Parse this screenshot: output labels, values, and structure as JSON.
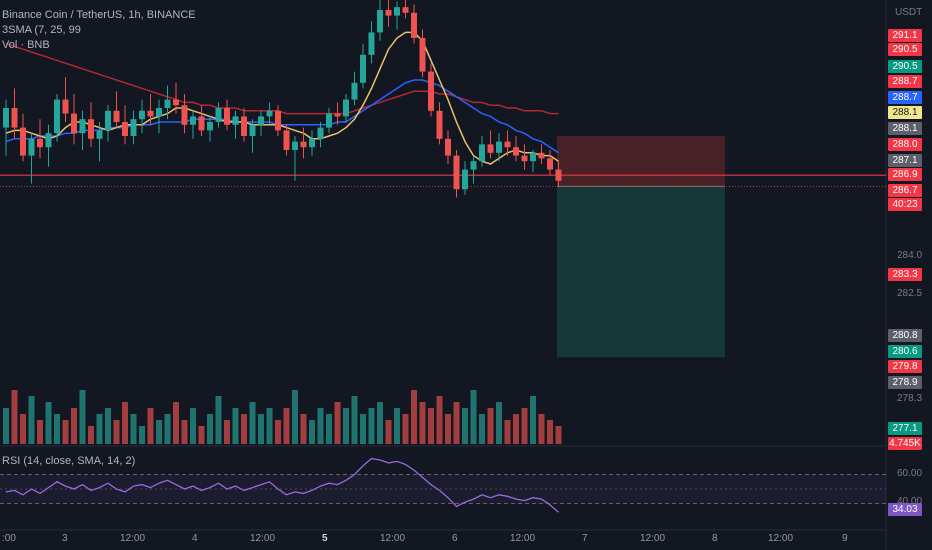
{
  "header": {
    "symbol": "Binance Coin / TetherUS, 1h, BINANCE",
    "ma_legend": "3SMA (7, 25, 99",
    "vol_legend": "Vol · BNB"
  },
  "currency": "USDT",
  "rsi_legend": "RSI (14, close, SMA, 14, 2)",
  "price_tags": [
    {
      "label": "291.1",
      "bg": "#f23645",
      "fg": "#ffffff"
    },
    {
      "label": "290.5",
      "bg": "#f23645",
      "fg": "#ffffff"
    },
    {
      "label": "290.5",
      "bg": "#089981",
      "fg": "#ffffff"
    },
    {
      "label": "288.7",
      "bg": "#f23645",
      "fg": "#ffffff"
    },
    {
      "label": "288.7",
      "bg": "#2962ff",
      "fg": "#ffffff"
    },
    {
      "label": "288.1",
      "bg": "#f0e68c",
      "fg": "#131722"
    },
    {
      "label": "288.1",
      "bg": "#5d606b",
      "fg": "#ffffff"
    },
    {
      "label": "288.0",
      "bg": "#f23645",
      "fg": "#ffffff"
    },
    {
      "label": "287.1",
      "bg": "#5d606b",
      "fg": "#ffffff"
    },
    {
      "label": "286.9",
      "bg": "#f23645",
      "fg": "#ffffff"
    },
    {
      "label": "286.7",
      "bg": "#f23645",
      "fg": "#ffffff"
    },
    {
      "label": "40:23",
      "bg": "#f23645",
      "fg": "#ffffff"
    },
    {
      "label": "283.3",
      "bg": "#f23645",
      "fg": "#ffffff"
    },
    {
      "label": "280.8",
      "bg": "#5d606b",
      "fg": "#ffffff"
    },
    {
      "label": "280.6",
      "bg": "#089981",
      "fg": "#ffffff"
    },
    {
      "label": "279.8",
      "bg": "#f23645",
      "fg": "#ffffff"
    },
    {
      "label": "278.9",
      "bg": "#5d606b",
      "fg": "#ffffff"
    },
    {
      "label": "277.1",
      "bg": "#089981",
      "fg": "#ffffff"
    },
    {
      "label": "4.745K",
      "bg": "#f23645",
      "fg": "#ffffff"
    }
  ],
  "axis_labels": [
    "284.0",
    "282.5",
    "278.3"
  ],
  "rsi": {
    "value": "34.03",
    "upper": "60.00",
    "lower": "40.00"
  },
  "time_labels": [
    ":00",
    "3",
    "12:00",
    "4",
    "12:00",
    "5",
    "12:00",
    "6",
    "12:00",
    "7",
    "12:00",
    "8",
    "12:00",
    "9"
  ],
  "colors": {
    "up": "#26a69a",
    "down": "#ef5350",
    "ma7": "#e8c36a",
    "ma25": "#2962ff",
    "ma99": "#b22833",
    "rsi": "#9c6ade",
    "risk": "#4e2227",
    "reward": "#163a38"
  },
  "chart_data": {
    "type": "candlestick",
    "candles": [
      [
        288.8,
        289.8,
        287.8,
        289.5
      ],
      [
        289.5,
        290.2,
        288.4,
        288.8
      ],
      [
        288.8,
        289.3,
        287.6,
        287.8
      ],
      [
        287.8,
        288.6,
        286.8,
        288.4
      ],
      [
        288.4,
        289.1,
        287.7,
        288.1
      ],
      [
        288.1,
        288.9,
        287.4,
        288.6
      ],
      [
        288.6,
        290.0,
        288.3,
        289.8
      ],
      [
        289.8,
        290.6,
        289.0,
        289.3
      ],
      [
        289.3,
        290.0,
        288.2,
        288.6
      ],
      [
        288.6,
        289.4,
        288.0,
        289.1
      ],
      [
        289.1,
        289.7,
        288.1,
        288.4
      ],
      [
        288.4,
        289.0,
        287.6,
        288.7
      ],
      [
        288.7,
        289.6,
        288.3,
        289.4
      ],
      [
        289.4,
        290.1,
        288.8,
        289.0
      ],
      [
        289.0,
        289.6,
        288.2,
        288.5
      ],
      [
        288.5,
        289.4,
        288.2,
        289.1
      ],
      [
        289.1,
        289.8,
        288.6,
        289.4
      ],
      [
        289.4,
        290.0,
        288.9,
        289.2
      ],
      [
        289.2,
        289.8,
        288.6,
        289.5
      ],
      [
        289.5,
        290.3,
        289.1,
        289.8
      ],
      [
        289.8,
        290.4,
        289.3,
        289.6
      ],
      [
        289.6,
        290.0,
        288.6,
        288.9
      ],
      [
        288.9,
        289.4,
        288.4,
        289.2
      ],
      [
        289.2,
        289.6,
        288.5,
        288.7
      ],
      [
        288.7,
        289.2,
        288.3,
        289.0
      ],
      [
        289.0,
        289.7,
        288.8,
        289.5
      ],
      [
        289.5,
        289.8,
        288.7,
        288.9
      ],
      [
        288.9,
        289.4,
        288.4,
        289.2
      ],
      [
        289.2,
        289.5,
        288.3,
        288.5
      ],
      [
        288.5,
        289.1,
        287.9,
        288.9
      ],
      [
        288.9,
        289.4,
        288.5,
        289.2
      ],
      [
        289.2,
        289.7,
        288.9,
        289.4
      ],
      [
        289.4,
        289.6,
        288.5,
        288.7
      ],
      [
        288.7,
        288.9,
        287.8,
        288.0
      ],
      [
        288.0,
        288.5,
        286.9,
        288.3
      ],
      [
        288.3,
        288.8,
        287.7,
        288.1
      ],
      [
        288.1,
        288.7,
        287.8,
        288.4
      ],
      [
        288.4,
        289.0,
        288.1,
        288.8
      ],
      [
        288.8,
        289.5,
        288.6,
        289.3
      ],
      [
        289.3,
        289.7,
        288.9,
        289.2
      ],
      [
        289.2,
        290.0,
        289.0,
        289.8
      ],
      [
        289.8,
        290.8,
        289.6,
        290.4
      ],
      [
        290.4,
        291.8,
        290.2,
        291.4
      ],
      [
        291.4,
        292.6,
        291.1,
        292.2
      ],
      [
        292.2,
        293.4,
        291.9,
        293.0
      ],
      [
        293.0,
        293.5,
        292.4,
        292.8
      ],
      [
        292.8,
        293.3,
        292.3,
        293.1
      ],
      [
        293.1,
        293.5,
        292.7,
        292.9
      ],
      [
        292.9,
        293.2,
        291.8,
        292.0
      ],
      [
        292.0,
        292.3,
        290.6,
        290.8
      ],
      [
        290.8,
        291.1,
        289.2,
        289.4
      ],
      [
        289.4,
        289.7,
        288.2,
        288.4
      ],
      [
        288.4,
        288.7,
        287.5,
        287.8
      ],
      [
        287.8,
        288.0,
        286.3,
        286.6
      ],
      [
        286.6,
        287.6,
        286.4,
        287.3
      ],
      [
        287.3,
        287.8,
        286.8,
        287.6
      ],
      [
        287.6,
        288.5,
        287.4,
        288.2
      ],
      [
        288.2,
        288.7,
        287.7,
        287.9
      ],
      [
        287.9,
        288.6,
        287.6,
        288.3
      ],
      [
        288.3,
        288.7,
        287.8,
        288.1
      ],
      [
        288.1,
        288.5,
        287.6,
        287.8
      ],
      [
        287.8,
        288.2,
        287.3,
        287.6
      ],
      [
        287.6,
        288.0,
        287.2,
        287.9
      ],
      [
        287.9,
        288.2,
        287.5,
        287.7
      ],
      [
        287.7,
        288.0,
        287.1,
        287.3
      ],
      [
        287.3,
        287.6,
        286.7,
        286.9
      ]
    ],
    "volumes": [
      6,
      9,
      5,
      8,
      4,
      7,
      5,
      4,
      6,
      9,
      3,
      5,
      6,
      4,
      7,
      5,
      3,
      6,
      4,
      5,
      7,
      4,
      6,
      3,
      5,
      8,
      4,
      6,
      5,
      7,
      5,
      6,
      4,
      6,
      9,
      5,
      4,
      6,
      5,
      7,
      6,
      8,
      5,
      6,
      7,
      4,
      6,
      5,
      9,
      7,
      6,
      8,
      5,
      7,
      6,
      9,
      5,
      6,
      7,
      4,
      5,
      6,
      8,
      5,
      4,
      3
    ],
    "rsi": [
      48,
      49,
      46,
      50,
      47,
      51,
      55,
      52,
      50,
      53,
      49,
      51,
      54,
      50,
      48,
      52,
      53,
      51,
      54,
      56,
      53,
      50,
      52,
      49,
      51,
      54,
      50,
      52,
      49,
      51,
      53,
      55,
      50,
      46,
      48,
      47,
      49,
      52,
      54,
      53,
      56,
      60,
      66,
      71,
      70,
      68,
      69,
      67,
      63,
      58,
      53,
      49,
      44,
      38,
      41,
      43,
      46,
      44,
      46,
      45,
      43,
      42,
      44,
      43,
      39,
      34.03
    ],
    "ma7": [
      288.6,
      288.7,
      288.7,
      288.6,
      288.5,
      288.4,
      288.5,
      288.8,
      289.0,
      289.0,
      288.9,
      288.8,
      288.7,
      288.8,
      288.9,
      288.9,
      288.9,
      289.1,
      289.2,
      289.3,
      289.5,
      289.5,
      289.4,
      289.3,
      289.2,
      289.1,
      289.0,
      289.0,
      289.0,
      288.9,
      288.9,
      288.9,
      288.9,
      288.8,
      288.7,
      288.6,
      288.4,
      288.4,
      288.5,
      288.6,
      288.8,
      289.1,
      289.6,
      290.2,
      290.9,
      291.6,
      292.0,
      292.2,
      292.2,
      291.9,
      291.2,
      290.5,
      289.8,
      289.0,
      288.3,
      287.8,
      287.6,
      287.5,
      287.7,
      287.9,
      288.0,
      287.9,
      287.9,
      287.8,
      287.8,
      287.6
    ],
    "ma25": [
      288.3,
      288.4,
      288.4,
      288.4,
      288.5,
      288.5,
      288.5,
      288.6,
      288.6,
      288.7,
      288.7,
      288.7,
      288.8,
      288.8,
      288.8,
      288.9,
      288.9,
      288.9,
      289.0,
      289.0,
      289.0,
      289.0,
      289.1,
      289.1,
      289.1,
      289.1,
      289.1,
      289.0,
      289.0,
      289.0,
      289.0,
      289.0,
      288.9,
      288.9,
      288.9,
      288.9,
      288.9,
      288.9,
      288.9,
      289.0,
      289.0,
      289.2,
      289.4,
      289.6,
      289.8,
      290.0,
      290.2,
      290.4,
      290.5,
      290.5,
      290.4,
      290.3,
      290.1,
      289.9,
      289.7,
      289.5,
      289.3,
      289.2,
      289.0,
      288.9,
      288.7,
      288.6,
      288.4,
      288.3,
      288.1,
      287.9
    ],
    "ma99": [
      291.8,
      291.7,
      291.6,
      291.5,
      291.4,
      291.3,
      291.2,
      291.1,
      291.0,
      290.9,
      290.8,
      290.7,
      290.6,
      290.5,
      290.4,
      290.3,
      290.2,
      290.1,
      290.0,
      289.9,
      289.8,
      289.7,
      289.7,
      289.6,
      289.6,
      289.5,
      289.5,
      289.5,
      289.4,
      289.4,
      289.4,
      289.4,
      289.4,
      289.3,
      289.3,
      289.3,
      289.3,
      289.3,
      289.3,
      289.3,
      289.3,
      289.4,
      289.5,
      289.6,
      289.7,
      289.8,
      289.9,
      290.0,
      290.1,
      290.1,
      290.1,
      290.0,
      290.0,
      289.9,
      289.8,
      289.7,
      289.7,
      289.6,
      289.6,
      289.5,
      289.5,
      289.4,
      289.4,
      289.4,
      289.3,
      289.3
    ],
    "horizontal_lines": [
      {
        "price": 287.1,
        "color": "#f23645"
      }
    ],
    "position": {
      "entry": 286.7,
      "stop": 288.5,
      "target": 280.6
    }
  }
}
